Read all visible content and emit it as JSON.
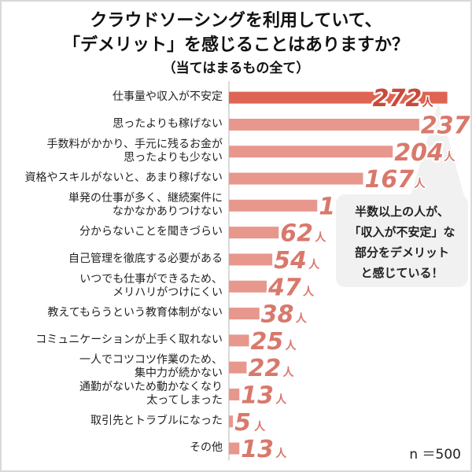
{
  "title": {
    "line1": "クラウドソーシングを利用していて、",
    "line2": "「デメリット」を感じることはありますか？",
    "line3": "（当てはまるもの全て）"
  },
  "callout": {
    "lines": [
      "半数以上の人が、",
      "「収入が不安定」な",
      "部分をデメリット",
      "と感じている！"
    ]
  },
  "sample_size": "n ＝500",
  "unit": "人",
  "colors": {
    "top_bar": "#de6553",
    "bar": "#e8978d",
    "top_number": "#c94a3a",
    "number": "#d9786c",
    "callout_bg": "#f1f1f1"
  },
  "chart_data": {
    "type": "bar",
    "orientation": "horizontal",
    "categories": [
      [
        "仕事量や収入が不安定"
      ],
      [
        "思ったよりも稼げない"
      ],
      [
        "手数料がかかり、手元に残るお金が",
        "思ったよりも少ない"
      ],
      [
        "資格やスキルがないと、あまり稼げない"
      ],
      [
        "単発の仕事が多く、継続案件に",
        "なかなかありつけない"
      ],
      [
        "分からないことを聞きづらい"
      ],
      [
        "自己管理を徹底する必要がある"
      ],
      [
        "いつでも仕事ができるため、",
        "メリハリがつけにくい"
      ],
      [
        "教えてもらうという教育体制がない"
      ],
      [
        "コミュニケーションが上手く取れない"
      ],
      [
        "一人でコツコツ作業のため、",
        "集中力が続かない"
      ],
      [
        "通勤がないため動かなくなり",
        "太ってしまった"
      ],
      [
        "取引先とトラブルになった"
      ],
      [
        "その他"
      ]
    ],
    "values": [
      272,
      237,
      204,
      167,
      110,
      62,
      54,
      47,
      38,
      25,
      22,
      13,
      5,
      13
    ],
    "value_unit": "人",
    "xlim": [
      0,
      290
    ]
  }
}
